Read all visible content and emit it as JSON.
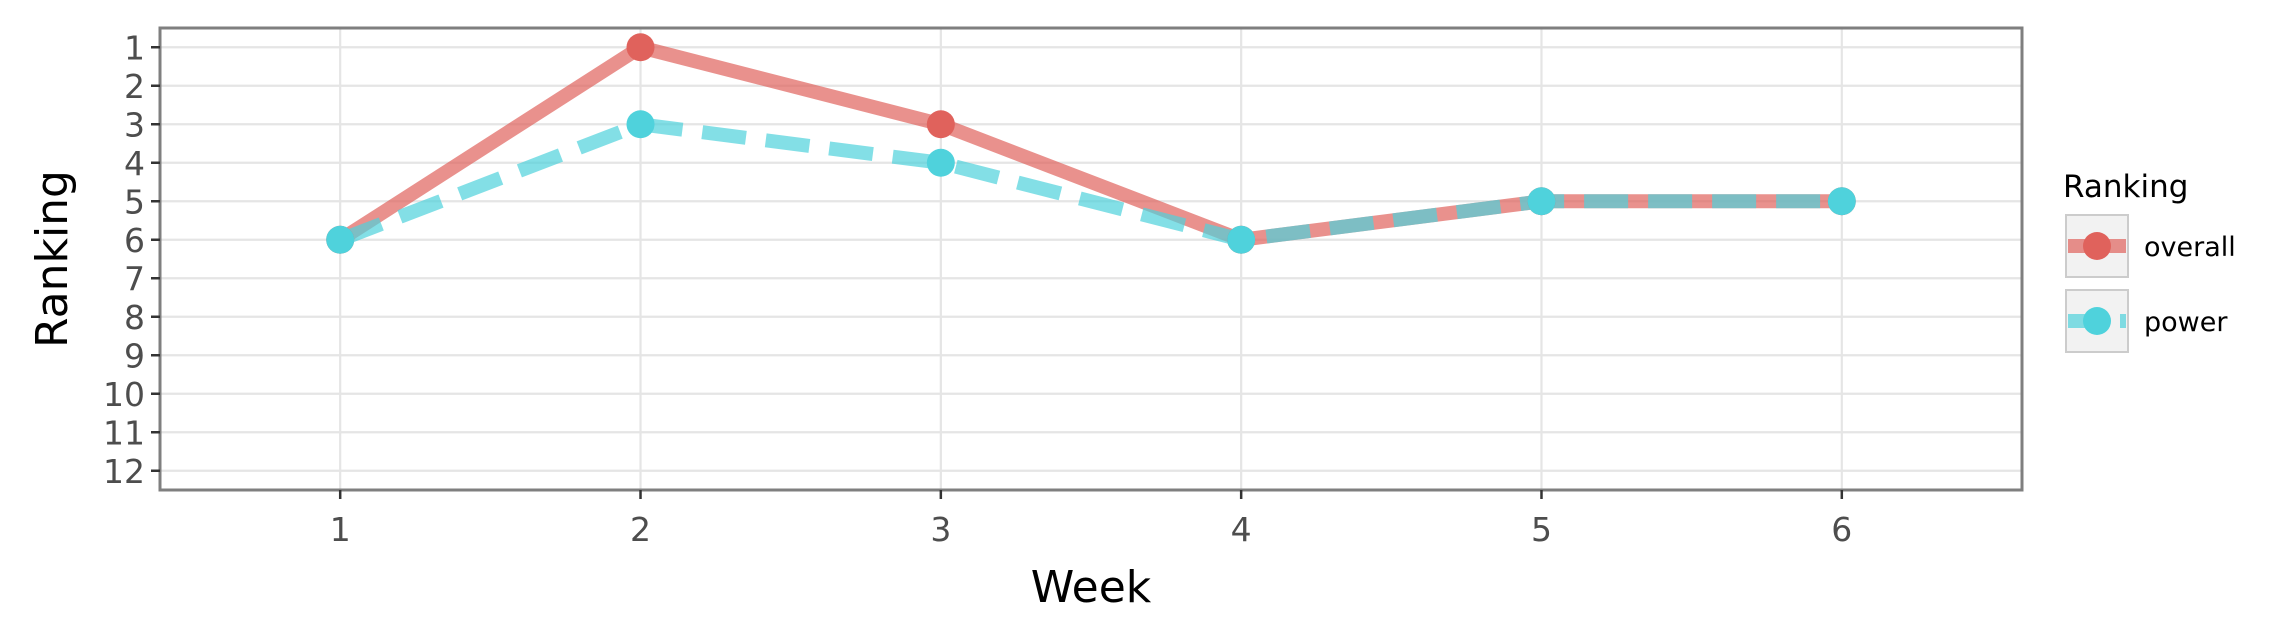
{
  "chart_data": {
    "type": "line",
    "xlabel": "Week",
    "ylabel": "Ranking",
    "x": [
      1,
      2,
      3,
      4,
      5,
      6
    ],
    "xlim": [
      0.4,
      6.6
    ],
    "ylim": [
      12.5,
      0.5
    ],
    "y_reversed": true,
    "yticks": [
      1,
      2,
      3,
      4,
      5,
      6,
      7,
      8,
      9,
      10,
      11,
      12
    ],
    "grid": true,
    "legend": {
      "title": "Ranking",
      "position": "right"
    },
    "series": [
      {
        "name": "overall",
        "values": [
          6,
          1,
          3,
          6,
          5,
          5
        ],
        "color": "#e0625c",
        "line_style": "solid"
      },
      {
        "name": "power",
        "values": [
          6,
          3,
          4,
          6,
          5,
          5
        ],
        "color": "#4fd2dc",
        "line_style": "dashed"
      }
    ]
  }
}
